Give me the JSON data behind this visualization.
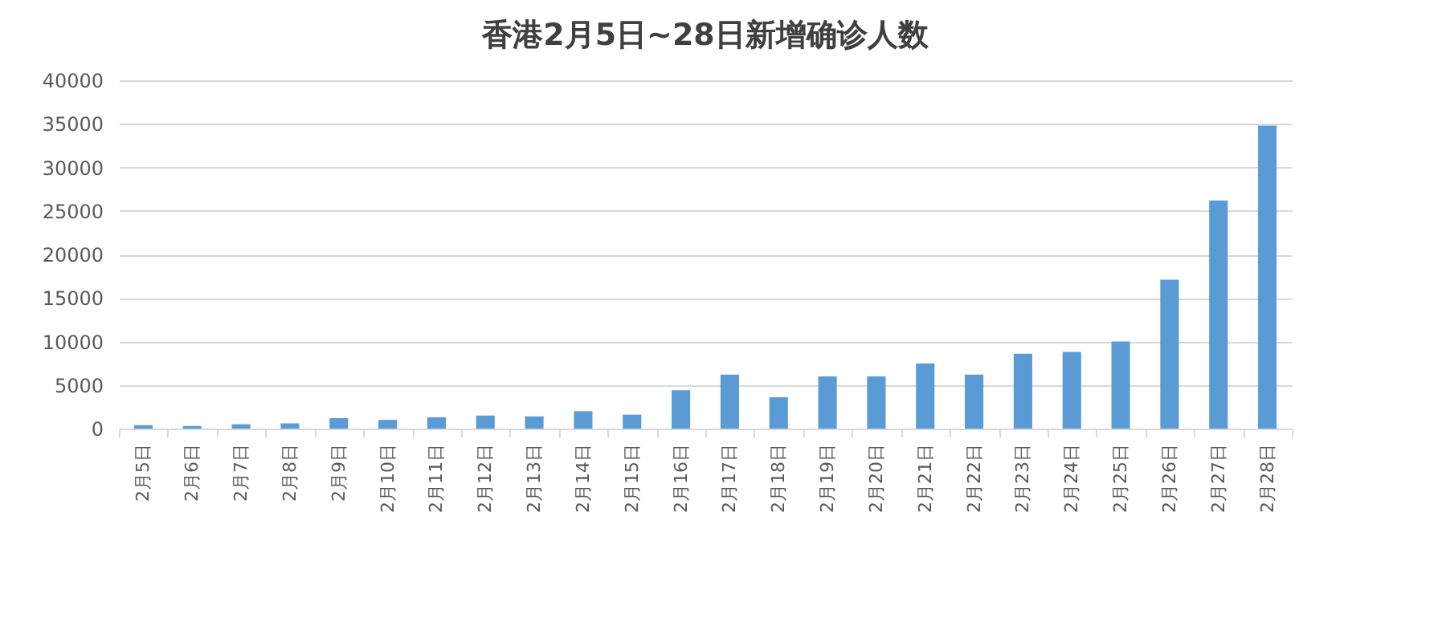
{
  "chart_data": {
    "type": "bar",
    "title": "香港2月5日~28日新增确诊人数",
    "categories": [
      "2月5日",
      "2月6日",
      "2月7日",
      "2月8日",
      "2月9日",
      "2月10日",
      "2月11日",
      "2月12日",
      "2月13日",
      "2月14日",
      "2月15日",
      "2月16日",
      "2月17日",
      "2月18日",
      "2月19日",
      "2月20日",
      "2月21日",
      "2月22日",
      "2月23日",
      "2月24日",
      "2月25日",
      "2月26日",
      "2月27日",
      "2月28日"
    ],
    "values": [
      400,
      300,
      500,
      600,
      1200,
      1000,
      1300,
      1500,
      1400,
      2000,
      1600,
      4400,
      6200,
      3600,
      6000,
      6000,
      7500,
      6200,
      8600,
      8800,
      10000,
      17100,
      26200,
      34800
    ],
    "color": "#5b9bd5",
    "ylim": [
      0,
      40000
    ],
    "yticks": [
      0,
      5000,
      10000,
      15000,
      20000,
      25000,
      30000,
      35000,
      40000
    ],
    "grid": "y"
  }
}
